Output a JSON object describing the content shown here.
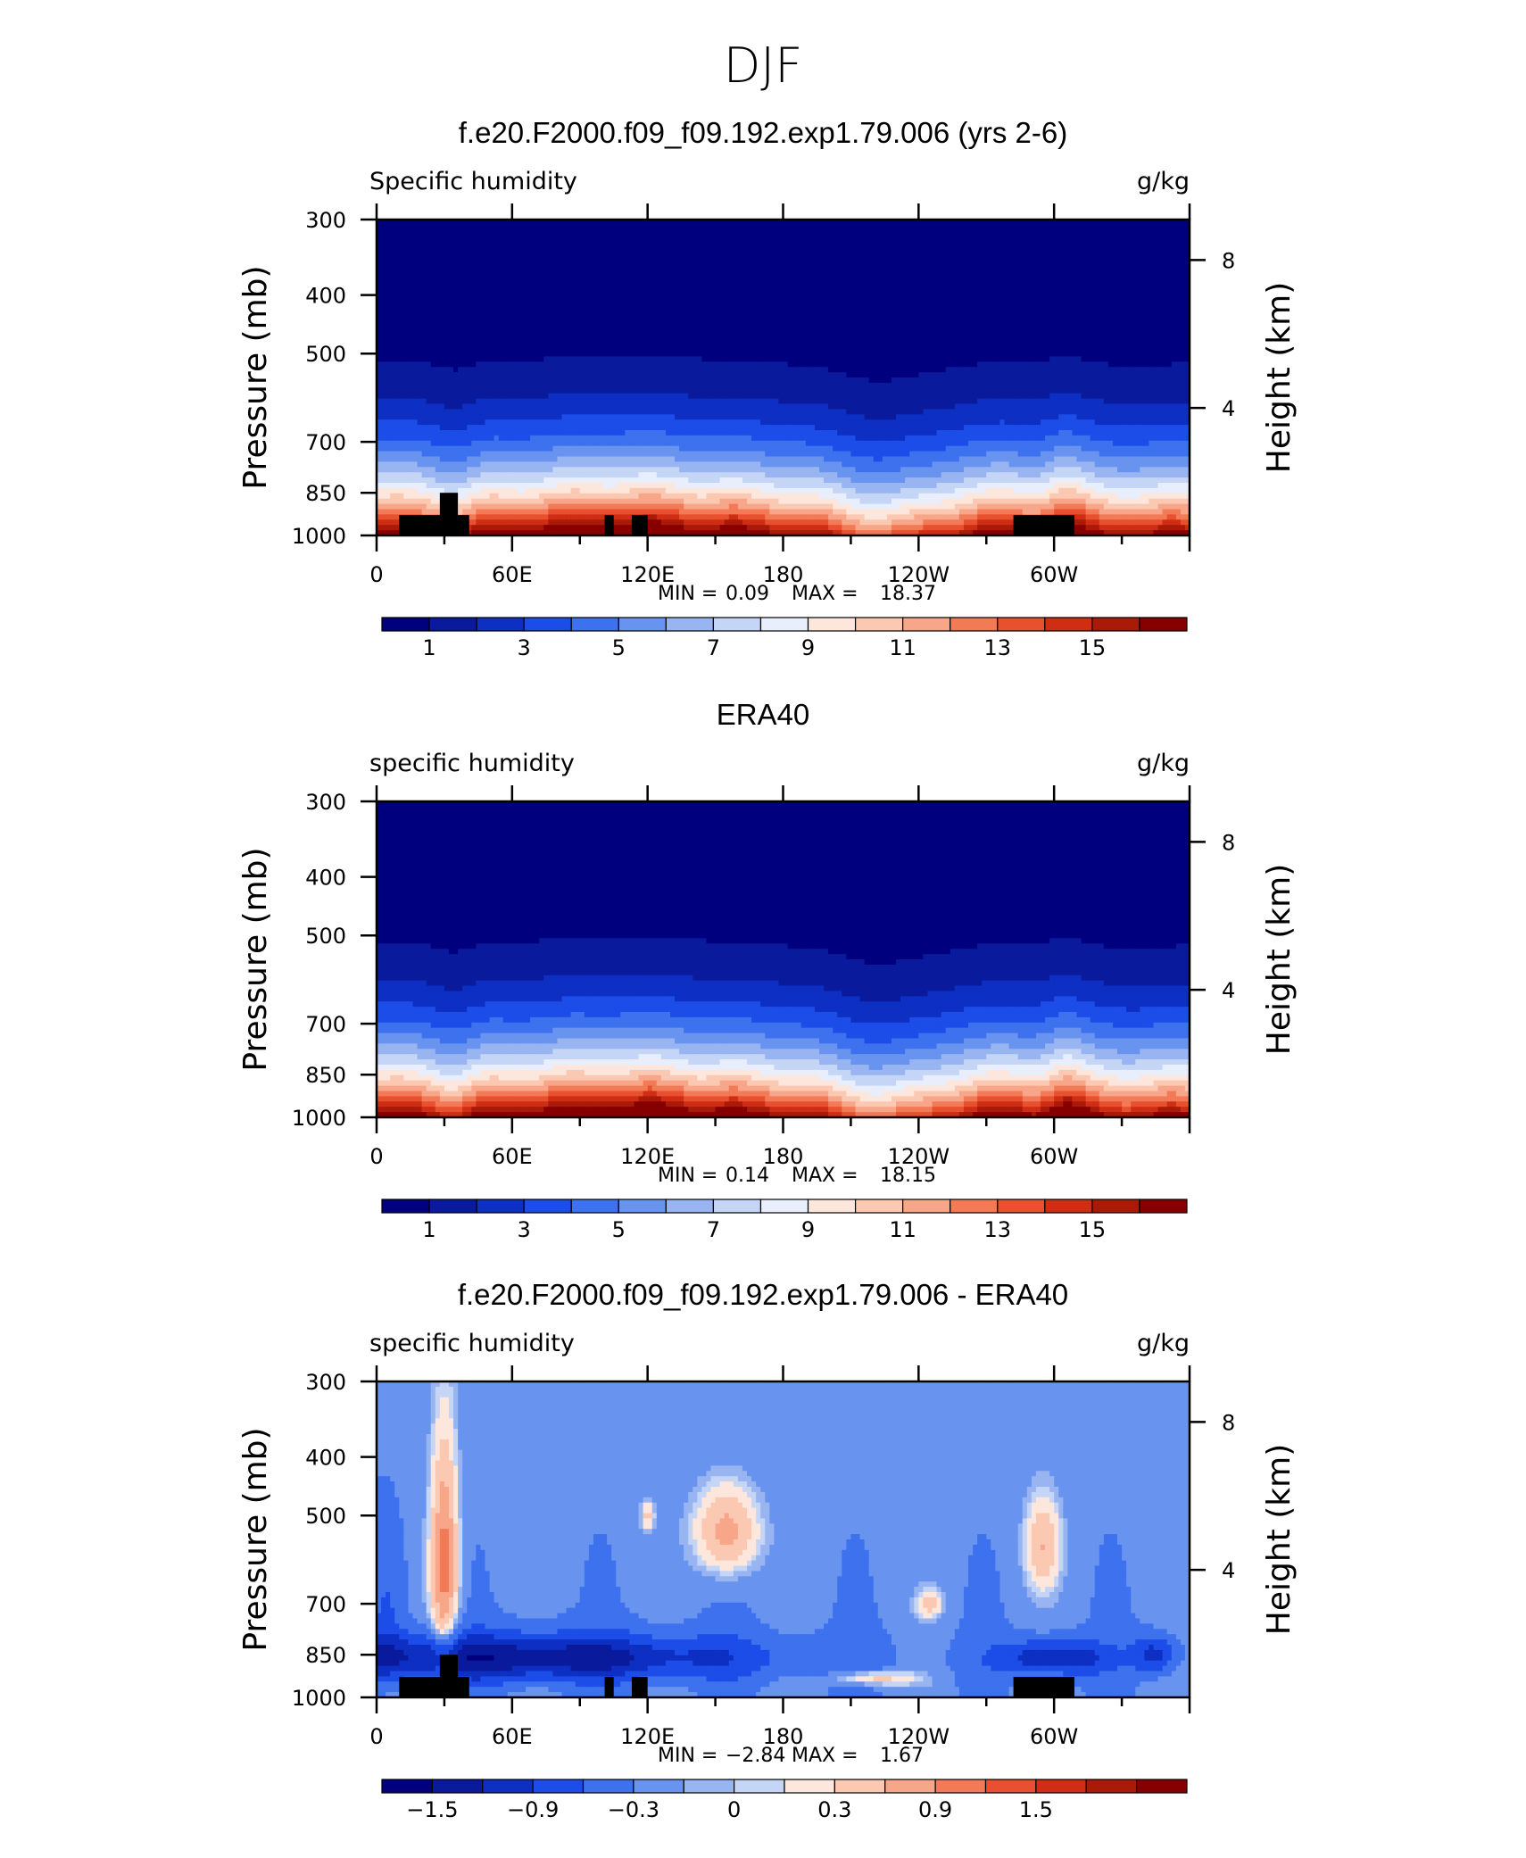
{
  "figure_title": "DJF",
  "chart_data": [
    {
      "type": "heatmap",
      "title": "f.e20.F2000.f09_f09.192.exp1.79.006 (yrs 2-6)",
      "field_label": "Specific humidity",
      "units": "g/kg",
      "ylabel": "Pressure (mb)",
      "y2label": "Height (km)",
      "y_ticks": [
        "300",
        "400",
        "500",
        "700",
        "850",
        "1000"
      ],
      "y2_ticks": [
        "8",
        "4"
      ],
      "x_ticks": [
        "0",
        "60E",
        "120E",
        "180",
        "120W",
        "60W"
      ],
      "stats": {
        "min_label": "MIN =",
        "min": "0.09",
        "max_label": "MAX =",
        "max": "18.37"
      },
      "colorbar_labels": [
        "1",
        "3",
        "5",
        "7",
        "9",
        "11",
        "13",
        "15"
      ],
      "levels": [
        0,
        1,
        2,
        3,
        4,
        5,
        6,
        7,
        8,
        9,
        10,
        11,
        12,
        13,
        14,
        15,
        16
      ],
      "colors": [
        "#00007f",
        "#0a1a9c",
        "#0d2fc2",
        "#1d4de8",
        "#3d71ee",
        "#6894f0",
        "#98b5f2",
        "#c4d5f6",
        "#e8eefb",
        "#fde6dc",
        "#fbc9b2",
        "#f8a689",
        "#f27a57",
        "#e8502f",
        "#cf2d14",
        "#a91a08",
        "#870000"
      ],
      "topography": true
    },
    {
      "type": "heatmap",
      "title": "ERA40",
      "field_label": "specific humidity",
      "units": "g/kg",
      "ylabel": "Pressure (mb)",
      "y2label": "Height (km)",
      "y_ticks": [
        "300",
        "400",
        "500",
        "700",
        "850",
        "1000"
      ],
      "y2_ticks": [
        "8",
        "4"
      ],
      "x_ticks": [
        "0",
        "60E",
        "120E",
        "180",
        "120W",
        "60W"
      ],
      "stats": {
        "min_label": "MIN =",
        "min": "0.14",
        "max_label": "MAX =",
        "max": "18.15"
      },
      "colorbar_labels": [
        "1",
        "3",
        "5",
        "7",
        "9",
        "11",
        "13",
        "15"
      ],
      "levels": [
        0,
        1,
        2,
        3,
        4,
        5,
        6,
        7,
        8,
        9,
        10,
        11,
        12,
        13,
        14,
        15,
        16
      ],
      "colors": [
        "#00007f",
        "#0a1a9c",
        "#0d2fc2",
        "#1d4de8",
        "#3d71ee",
        "#6894f0",
        "#98b5f2",
        "#c4d5f6",
        "#e8eefb",
        "#fde6dc",
        "#fbc9b2",
        "#f8a689",
        "#f27a57",
        "#e8502f",
        "#cf2d14",
        "#a91a08",
        "#870000"
      ],
      "topography": false
    },
    {
      "type": "heatmap",
      "title": "f.e20.F2000.f09_f09.192.exp1.79.006 - ERA40",
      "field_label": "specific humidity",
      "units": "g/kg",
      "ylabel": "Pressure (mb)",
      "y2label": "Height (km)",
      "y_ticks": [
        "300",
        "400",
        "500",
        "700",
        "850",
        "1000"
      ],
      "y2_ticks": [
        "8",
        "4"
      ],
      "x_ticks": [
        "0",
        "60E",
        "120E",
        "180",
        "120W",
        "60W"
      ],
      "stats": {
        "min_label": "MIN =",
        "min": "−2.84",
        "max_label": "MAX =",
        "max": "1.67"
      },
      "colorbar_labels": [
        "−1.5",
        "−0.9",
        "−0.3",
        "0",
        "0.3",
        "0.9",
        "1.5"
      ],
      "levels": [
        -1.8,
        -1.5,
        -1.2,
        -0.9,
        -0.6,
        -0.3,
        -0.1,
        0,
        0.1,
        0.3,
        0.6,
        0.9,
        1.2,
        1.5,
        1.8,
        2.1
      ],
      "colors": [
        "#00007f",
        "#0a1a9c",
        "#0d2fc2",
        "#1d4de8",
        "#3d71ee",
        "#6894f0",
        "#98b5f2",
        "#c4d5f6",
        "#fde6dc",
        "#fbc9b2",
        "#f8a689",
        "#f27a57",
        "#e8502f",
        "#cf2d14",
        "#a91a08",
        "#870000"
      ],
      "topography": true
    }
  ]
}
